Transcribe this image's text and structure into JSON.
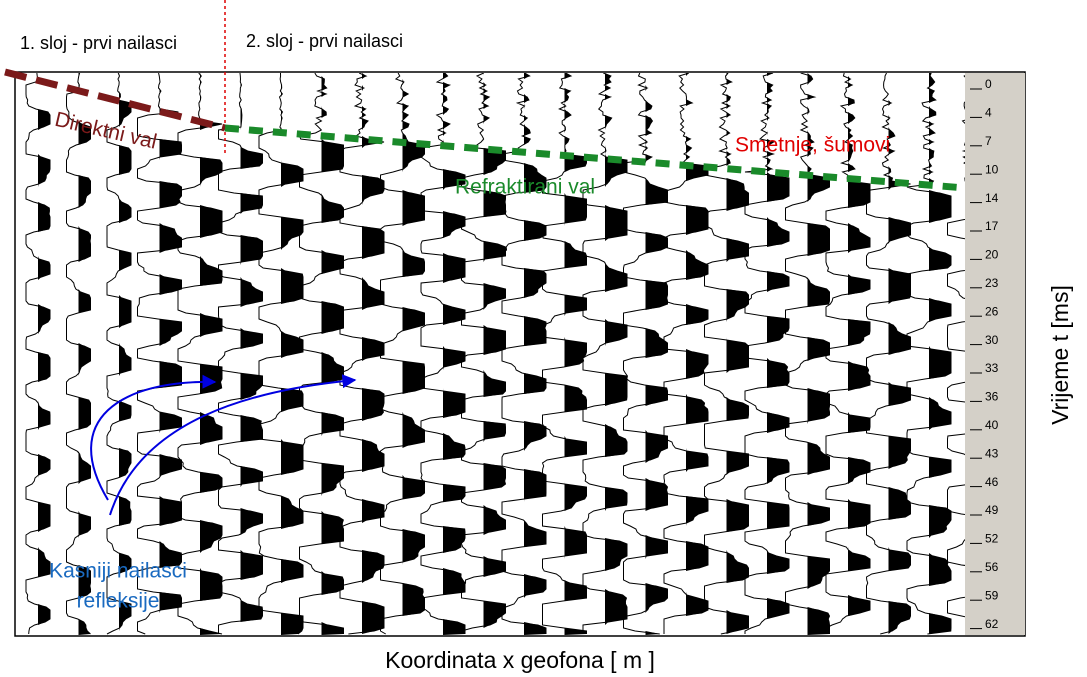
{
  "labels": {
    "layer1": "1. sloj - prvi nailasci",
    "layer2": "2. sloj - prvi nailasci",
    "direct": "Direktni  val",
    "refracted": "Refraktirani val",
    "noise": "Smetnje, šumovi",
    "reflections_1": "Kasniji nailasci",
    "reflections_2": "refleksije",
    "x_axis": "Koordinata x geofona  [ m ]",
    "y_axis": "Vrijeme t [ms]"
  },
  "time_scale": [
    0,
    4,
    7,
    10,
    14,
    17,
    20,
    23,
    26,
    30,
    33,
    36,
    40,
    43,
    46,
    49,
    52,
    56,
    59,
    62
  ]
}
